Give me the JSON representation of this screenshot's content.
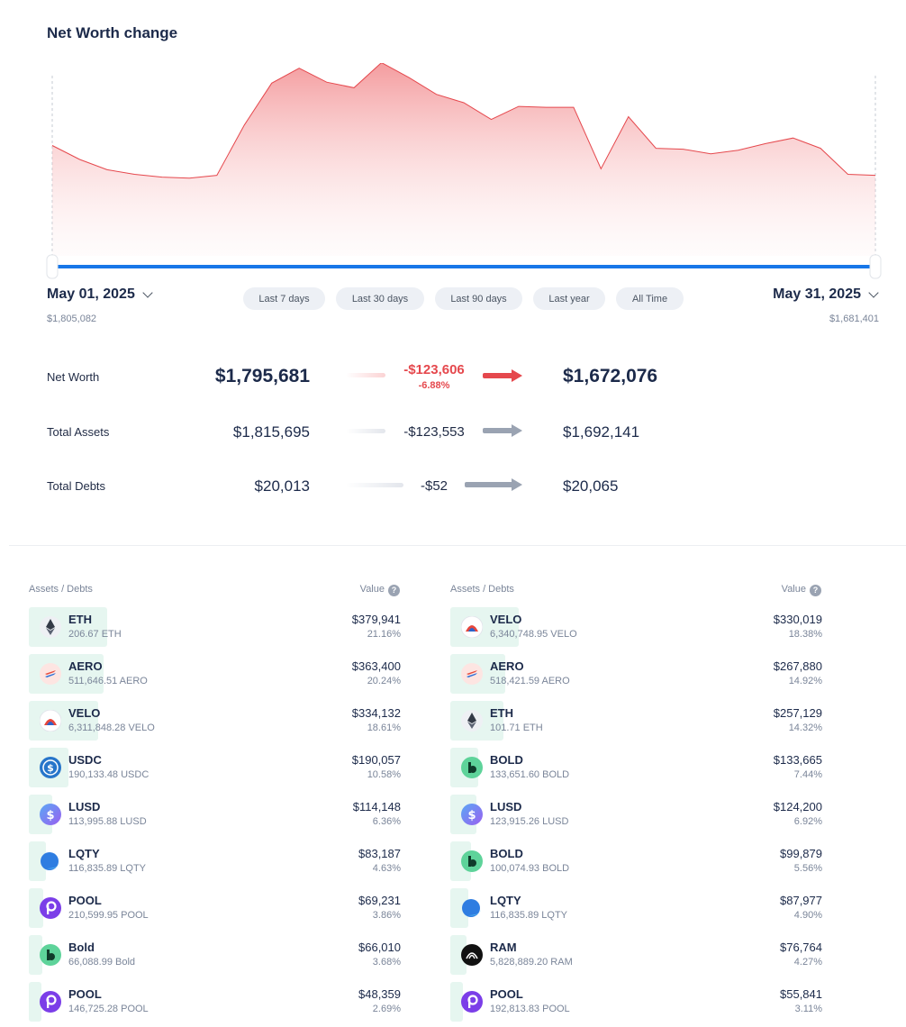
{
  "title": "Net Worth change",
  "chart_data": {
    "type": "area",
    "title": "Net Worth change",
    "x_start": "May 01, 2025",
    "x_end": "May 31, 2025",
    "ylim": [
      1650000,
      1830000
    ],
    "values": [
      1755000,
      1740000,
      1729000,
      1724000,
      1721000,
      1720000,
      1723000,
      1777000,
      1822000,
      1838000,
      1823000,
      1817000,
      1844000,
      1828000,
      1810000,
      1801000,
      1783000,
      1797000,
      1796000,
      1796000,
      1730000,
      1786000,
      1752000,
      1751000,
      1746000,
      1750000,
      1757000,
      1763000,
      1752000,
      1724000,
      1723000
    ],
    "color": "#e5484d"
  },
  "date_start": {
    "label": "May 01, 2025",
    "value": "$1,805,082"
  },
  "date_end": {
    "label": "May 31, 2025",
    "value": "$1,681,401"
  },
  "ranges": [
    "Last 7 days",
    "Last 30 days",
    "Last 90 days",
    "Last year",
    "All Time"
  ],
  "summary": {
    "net_worth": {
      "label": "Net Worth",
      "start": "$1,795,681",
      "change": "-$123,606",
      "pct": "-6.88%",
      "end": "$1,672,076"
    },
    "assets": {
      "label": "Total Assets",
      "start": "$1,815,695",
      "change": "-$123,553",
      "end": "$1,692,141"
    },
    "debts": {
      "label": "Total Debts",
      "start": "$20,013",
      "change": "-$52",
      "end": "$20,065"
    }
  },
  "tables": [
    {
      "header_asset": "Assets / Debts",
      "header_value": "Value",
      "rows": [
        {
          "sym": "ETH",
          "amt": "206.67 ETH",
          "val": "$379,941",
          "pct": "21.16%",
          "share": 0.2116,
          "icon": "eth-icon"
        },
        {
          "sym": "AERO",
          "amt": "511,646.51 AERO",
          "val": "$363,400",
          "pct": "20.24%",
          "share": 0.2024,
          "icon": "aero-icon"
        },
        {
          "sym": "VELO",
          "amt": "6,311,848.28 VELO",
          "val": "$334,132",
          "pct": "18.61%",
          "share": 0.1861,
          "icon": "velo-icon"
        },
        {
          "sym": "USDC",
          "amt": "190,133.48 USDC",
          "val": "$190,057",
          "pct": "10.58%",
          "share": 0.1058,
          "icon": "usdc-icon"
        },
        {
          "sym": "LUSD",
          "amt": "113,995.88 LUSD",
          "val": "$114,148",
          "pct": "6.36%",
          "share": 0.0636,
          "icon": "lusd-icon"
        },
        {
          "sym": "LQTY",
          "amt": "116,835.89 LQTY",
          "val": "$83,187",
          "pct": "4.63%",
          "share": 0.0463,
          "icon": "lqty-icon"
        },
        {
          "sym": "POOL",
          "amt": "210,599.95 POOL",
          "val": "$69,231",
          "pct": "3.86%",
          "share": 0.0386,
          "icon": "pool-icon"
        },
        {
          "sym": "Bold",
          "amt": "66,088.99 Bold",
          "val": "$66,010",
          "pct": "3.68%",
          "share": 0.0368,
          "icon": "bold-icon"
        },
        {
          "sym": "POOL",
          "amt": "146,725.28 POOL",
          "val": "$48,359",
          "pct": "2.69%",
          "share": 0.0269,
          "icon": "pool-icon"
        }
      ]
    },
    {
      "header_asset": "Assets / Debts",
      "header_value": "Value",
      "rows": [
        {
          "sym": "VELO",
          "amt": "6,340,748.95 VELO",
          "val": "$330,019",
          "pct": "18.38%",
          "share": 0.1838,
          "icon": "velo-icon"
        },
        {
          "sym": "AERO",
          "amt": "518,421.59 AERO",
          "val": "$267,880",
          "pct": "14.92%",
          "share": 0.1492,
          "icon": "aero-icon"
        },
        {
          "sym": "ETH",
          "amt": "101.71 ETH",
          "val": "$257,129",
          "pct": "14.32%",
          "share": 0.1432,
          "icon": "eth-icon"
        },
        {
          "sym": "BOLD",
          "amt": "133,651.60 BOLD",
          "val": "$133,665",
          "pct": "7.44%",
          "share": 0.0744,
          "icon": "bold-icon"
        },
        {
          "sym": "LUSD",
          "amt": "123,915.26 LUSD",
          "val": "$124,200",
          "pct": "6.92%",
          "share": 0.0692,
          "icon": "lusd-icon"
        },
        {
          "sym": "BOLD",
          "amt": "100,074.93 BOLD",
          "val": "$99,879",
          "pct": "5.56%",
          "share": 0.0556,
          "icon": "bold-icon"
        },
        {
          "sym": "LQTY",
          "amt": "116,835.89 LQTY",
          "val": "$87,977",
          "pct": "4.90%",
          "share": 0.049,
          "icon": "lqty-icon"
        },
        {
          "sym": "RAM",
          "amt": "5,828,889.20 RAM",
          "val": "$76,764",
          "pct": "4.27%",
          "share": 0.0427,
          "icon": "ram-icon"
        },
        {
          "sym": "POOL",
          "amt": "192,813.83 POOL",
          "val": "$55,841",
          "pct": "3.11%",
          "share": 0.0311,
          "icon": "pool-icon"
        }
      ]
    }
  ]
}
